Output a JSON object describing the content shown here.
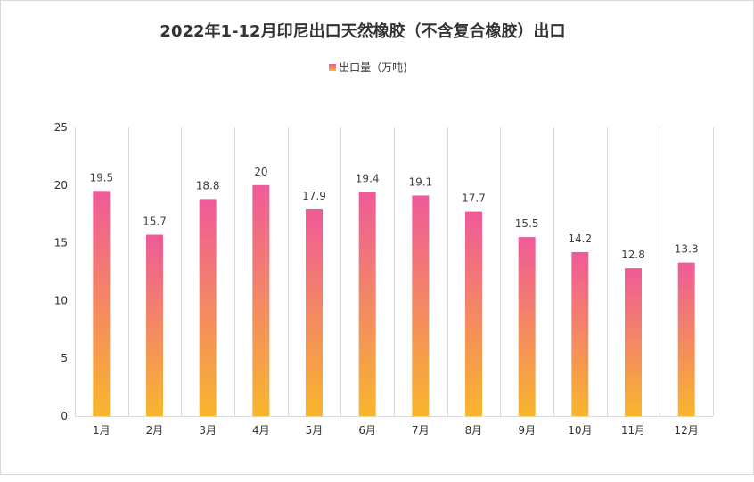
{
  "chart_data": {
    "type": "bar",
    "title": "2022年1-12月印尼出口天然橡胶（不含复合橡胶）出口",
    "xlabel": "",
    "ylabel": "",
    "categories": [
      "1月",
      "2月",
      "3月",
      "4月",
      "5月",
      "6月",
      "7月",
      "8月",
      "9月",
      "10月",
      "11月",
      "12月"
    ],
    "series": [
      {
        "name": "出口量（万吨)",
        "values": [
          19.5,
          15.7,
          18.8,
          20,
          17.9,
          19.4,
          19.1,
          17.7,
          15.5,
          14.2,
          12.8,
          13.3
        ]
      }
    ],
    "ylim": [
      0,
      25
    ],
    "yticks": [
      0,
      5,
      10,
      15,
      20,
      25
    ],
    "grid": "vertical",
    "legend": "top-center",
    "data_labels": true,
    "colors": {
      "bar_top": "#ef5a99",
      "bar_bottom": "#f8b62d",
      "grid": "#d9d9d9",
      "text": "#333333"
    }
  }
}
